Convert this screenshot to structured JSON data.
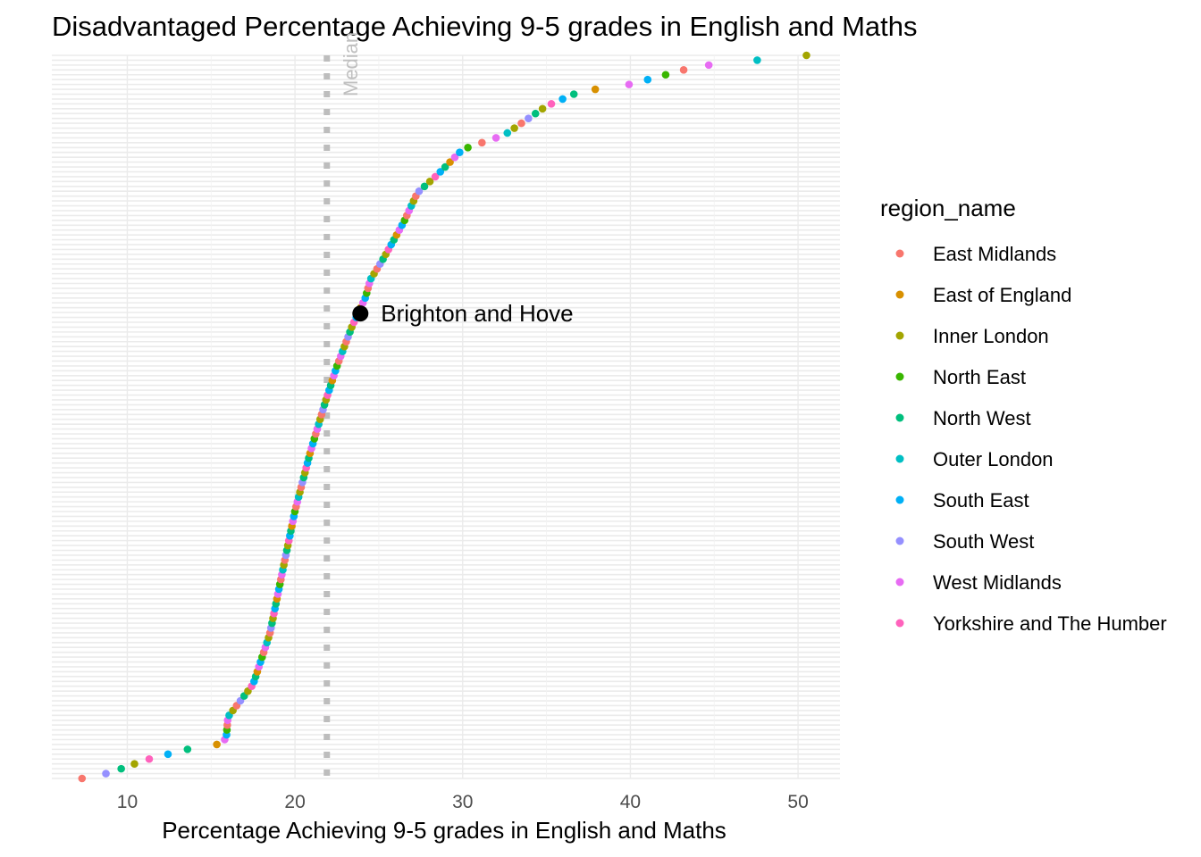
{
  "chart_data": {
    "type": "scatter",
    "title": "Disadvantaged Percentage Achieving 9-5 grades in English and Maths",
    "xlabel": "Percentage Achieving 9-5 grades in English and Maths",
    "ylabel": "",
    "xlim": [
      5.5,
      52.5
    ],
    "x_ticks": [
      "10",
      "20",
      "30",
      "40",
      "50"
    ],
    "grid": true,
    "legend_position": "right",
    "legend": {
      "title": "region_name",
      "entries": [
        {
          "name": "East Midlands",
          "color": "#F8766D"
        },
        {
          "name": "East of England",
          "color": "#D89000"
        },
        {
          "name": "Inner London",
          "color": "#A3A500"
        },
        {
          "name": "North East",
          "color": "#39B600"
        },
        {
          "name": "North West",
          "color": "#00BF7D"
        },
        {
          "name": "Outer London",
          "color": "#00BFC4"
        },
        {
          "name": "South East",
          "color": "#00B0F6"
        },
        {
          "name": "South West",
          "color": "#9590FF"
        },
        {
          "name": "West Midlands",
          "color": "#E76BF3"
        },
        {
          "name": "Yorkshire and The Humber",
          "color": "#FF62BC"
        }
      ]
    },
    "median": {
      "x": 21.9,
      "label": "Median"
    },
    "highlight": {
      "label": "Brighton and Hove",
      "x": 23.9
    },
    "curve_knots": [
      [
        7.3,
        0.0
      ],
      [
        9.0,
        0.008
      ],
      [
        11.0,
        0.025
      ],
      [
        13.5,
        0.04
      ],
      [
        15.2,
        0.045
      ],
      [
        15.9,
        0.055
      ],
      [
        16.0,
        0.085
      ],
      [
        17.5,
        0.13
      ],
      [
        18.5,
        0.2
      ],
      [
        19.2,
        0.28
      ],
      [
        20.0,
        0.37
      ],
      [
        20.9,
        0.45
      ],
      [
        21.8,
        0.52
      ],
      [
        22.5,
        0.57
      ],
      [
        23.4,
        0.625
      ],
      [
        24.2,
        0.665
      ],
      [
        24.5,
        0.69
      ],
      [
        25.3,
        0.72
      ],
      [
        26.5,
        0.77
      ],
      [
        27.3,
        0.81
      ],
      [
        28.5,
        0.835
      ],
      [
        30.0,
        0.87
      ],
      [
        32.5,
        0.89
      ],
      [
        35.0,
        0.93
      ],
      [
        37.0,
        0.95
      ],
      [
        40.0,
        0.96
      ],
      [
        44.0,
        0.985
      ],
      [
        47.0,
        0.992
      ],
      [
        50.5,
        1.0
      ]
    ],
    "n_points": 150
  }
}
